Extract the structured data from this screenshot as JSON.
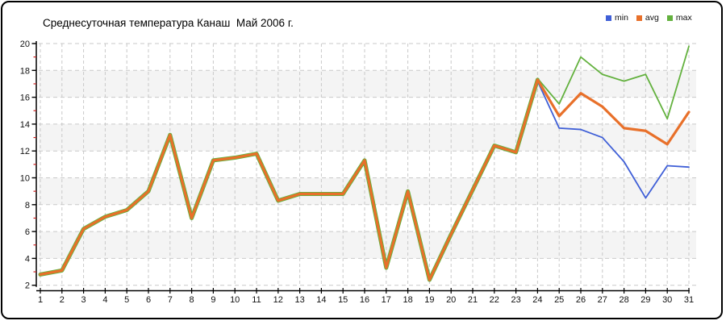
{
  "window": {
    "background": "#ffffff",
    "border_color": "#000000"
  },
  "chart_data": {
    "type": "line",
    "title": "Среднесуточная температура Канаш  Май 2006 г.",
    "xlabel": "",
    "ylabel": "",
    "xlim": [
      1,
      31
    ],
    "ylim": [
      2,
      20
    ],
    "y_tick_step": 2,
    "y_minor_tick_step": 1,
    "grid": "dashed",
    "plot_bands": "alternating white / light-gray every 2 units",
    "legend_position": "top-right",
    "colors": {
      "grid": "#c9c9c9",
      "band_gray": "#f4f4f4",
      "axis": "#000000",
      "minor_tick_red": "#cc2222"
    },
    "x": [
      1,
      2,
      3,
      4,
      5,
      6,
      7,
      8,
      9,
      10,
      11,
      12,
      13,
      14,
      15,
      16,
      17,
      18,
      19,
      20,
      21,
      22,
      23,
      24,
      25,
      26,
      27,
      28,
      29,
      30,
      31
    ],
    "series": [
      {
        "name": "min",
        "color": "#3f5fd7",
        "values": [
          2.8,
          3.1,
          6.2,
          7.1,
          7.6,
          9.0,
          13.2,
          7.0,
          11.3,
          11.5,
          11.8,
          8.3,
          8.8,
          8.8,
          8.8,
          11.3,
          3.3,
          9.0,
          2.4,
          5.8,
          9.1,
          12.4,
          11.9,
          17.2,
          13.7,
          13.6,
          13.0,
          11.2,
          8.5,
          10.9,
          10.8
        ]
      },
      {
        "name": "avg",
        "color": "#e8702a",
        "values": [
          2.8,
          3.1,
          6.2,
          7.1,
          7.6,
          9.0,
          13.2,
          7.0,
          11.3,
          11.5,
          11.8,
          8.3,
          8.8,
          8.8,
          8.8,
          11.3,
          3.3,
          9.0,
          2.4,
          5.8,
          9.1,
          12.4,
          11.9,
          17.3,
          14.6,
          16.3,
          15.3,
          13.7,
          13.5,
          12.5,
          14.9
        ]
      },
      {
        "name": "max",
        "color": "#63b13e",
        "values": [
          2.8,
          3.1,
          6.2,
          7.1,
          7.6,
          9.0,
          13.2,
          7.0,
          11.3,
          11.5,
          11.8,
          8.3,
          8.8,
          8.8,
          8.8,
          11.3,
          3.3,
          9.0,
          2.4,
          5.8,
          9.1,
          12.4,
          11.9,
          17.4,
          15.5,
          19.0,
          17.7,
          17.2,
          17.7,
          14.4,
          19.8
        ]
      }
    ]
  }
}
